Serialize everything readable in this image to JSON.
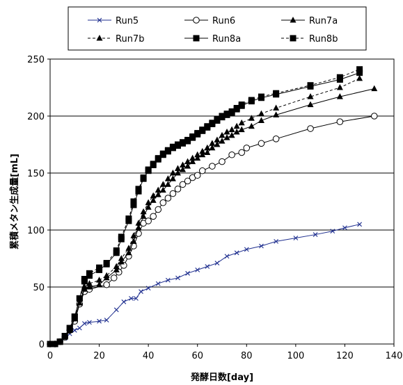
{
  "chart_data": {
    "type": "line",
    "title": "",
    "xlabel": "発酵日数[day]",
    "ylabel": "累積メタン生成量[mL]",
    "xlim": [
      0,
      140
    ],
    "ylim": [
      0,
      250
    ],
    "xticks": [
      0,
      20,
      40,
      60,
      80,
      100,
      120,
      140
    ],
    "yticks": [
      0,
      50,
      100,
      150,
      200,
      250
    ],
    "grid": "horizontal",
    "legend_position": "top",
    "series": [
      {
        "name": "Run5",
        "marker": "x",
        "line": "solid",
        "color": "#1f2f8f",
        "x": [
          0,
          2,
          4,
          6,
          8,
          10,
          12,
          14,
          16,
          20,
          23,
          27,
          30,
          33,
          35,
          37,
          40,
          44,
          48,
          52,
          56,
          60,
          64,
          68,
          72,
          76,
          80,
          86,
          92,
          100,
          108,
          115,
          120,
          126
        ],
        "y": [
          0,
          0,
          2,
          5,
          9,
          12,
          14,
          18,
          19,
          20,
          21,
          30,
          37,
          40,
          40,
          46,
          49,
          53,
          56,
          58,
          62,
          65,
          68,
          71,
          77,
          80,
          83,
          86,
          90,
          93,
          96,
          99,
          102,
          105
        ]
      },
      {
        "name": "Run6",
        "marker": "open-circle",
        "line": "solid",
        "color": "#000000",
        "x": [
          0,
          2,
          4,
          6,
          8,
          10,
          12,
          14,
          16,
          23,
          26,
          28,
          30,
          32,
          34,
          36,
          38,
          40,
          42,
          44,
          46,
          48,
          50,
          52,
          54,
          56,
          58,
          60,
          62,
          66,
          70,
          74,
          78,
          80,
          86,
          92,
          106,
          118,
          132
        ],
        "y": [
          0,
          0,
          2,
          6,
          12,
          20,
          35,
          46,
          48,
          52,
          58,
          63,
          69,
          77,
          86,
          97,
          106,
          108,
          112,
          118,
          124,
          128,
          132,
          136,
          140,
          143,
          146,
          148,
          152,
          156,
          160,
          166,
          168,
          172,
          176,
          180,
          189,
          195,
          200
        ]
      },
      {
        "name": "Run7a",
        "marker": "filled-triangle",
        "line": "solid",
        "color": "#000000",
        "x": [
          0,
          2,
          4,
          6,
          8,
          10,
          12,
          14,
          16,
          20,
          23,
          27,
          29,
          32,
          34,
          36,
          38,
          40,
          42,
          44,
          46,
          48,
          50,
          52,
          54,
          56,
          58,
          60,
          62,
          64,
          66,
          68,
          70,
          72,
          74,
          76,
          78,
          82,
          86,
          92,
          106,
          118,
          132
        ],
        "y": [
          0,
          0,
          2,
          6,
          12,
          22,
          36,
          48,
          50,
          52,
          58,
          65,
          72,
          80,
          90,
          102,
          112,
          120,
          126,
          131,
          135,
          140,
          145,
          150,
          153,
          156,
          160,
          163,
          166,
          168,
          172,
          175,
          178,
          181,
          183,
          186,
          188,
          191,
          196,
          201,
          210,
          217,
          224
        ]
      },
      {
        "name": "Run7b",
        "marker": "filled-triangle",
        "line": "dashed",
        "color": "#000000",
        "x": [
          0,
          2,
          4,
          6,
          8,
          10,
          12,
          14,
          16,
          20,
          23,
          27,
          29,
          32,
          34,
          36,
          38,
          40,
          42,
          44,
          46,
          48,
          50,
          52,
          54,
          56,
          58,
          60,
          62,
          64,
          66,
          68,
          70,
          72,
          74,
          76,
          78,
          82,
          86,
          92,
          106,
          118,
          126
        ],
        "y": [
          0,
          0,
          2,
          6,
          12,
          22,
          36,
          50,
          53,
          56,
          60,
          68,
          75,
          84,
          95,
          106,
          116,
          124,
          130,
          135,
          140,
          145,
          150,
          154,
          157,
          160,
          163,
          166,
          169,
          172,
          176,
          179,
          183,
          186,
          188,
          191,
          194,
          198,
          202,
          207,
          217,
          225,
          233
        ]
      },
      {
        "name": "Run8a",
        "marker": "filled-square",
        "line": "solid",
        "color": "#000000",
        "x": [
          0,
          2,
          4,
          6,
          8,
          10,
          12,
          14,
          16,
          20,
          23,
          27,
          29,
          32,
          34,
          36,
          38,
          40,
          42,
          44,
          46,
          48,
          50,
          52,
          54,
          56,
          58,
          60,
          62,
          64,
          66,
          68,
          70,
          72,
          74,
          76,
          78,
          82,
          86,
          92,
          106,
          118,
          126
        ],
        "y": [
          0,
          0,
          2,
          7,
          14,
          24,
          40,
          55,
          60,
          65,
          70,
          80,
          92,
          108,
          122,
          134,
          145,
          152,
          157,
          162,
          166,
          169,
          172,
          174,
          176,
          178,
          181,
          184,
          187,
          190,
          193,
          196,
          199,
          201,
          203,
          206,
          209,
          213,
          216,
          219,
          226,
          232,
          238
        ]
      },
      {
        "name": "Run8b",
        "marker": "filled-square",
        "line": "dashed",
        "color": "#000000",
        "x": [
          0,
          2,
          4,
          6,
          8,
          10,
          12,
          14,
          16,
          20,
          23,
          27,
          29,
          32,
          34,
          36,
          38,
          40,
          42,
          44,
          46,
          48,
          50,
          52,
          54,
          56,
          58,
          60,
          62,
          64,
          66,
          68,
          70,
          72,
          74,
          76,
          78,
          82,
          86,
          92,
          106,
          118,
          126
        ],
        "y": [
          0,
          0,
          2,
          7,
          14,
          24,
          40,
          57,
          62,
          67,
          71,
          82,
          94,
          110,
          125,
          136,
          146,
          153,
          158,
          163,
          167,
          170,
          173,
          175,
          177,
          179,
          182,
          185,
          188,
          191,
          194,
          197,
          200,
          202,
          204,
          207,
          210,
          214,
          217,
          220,
          227,
          234,
          241
        ]
      }
    ]
  }
}
